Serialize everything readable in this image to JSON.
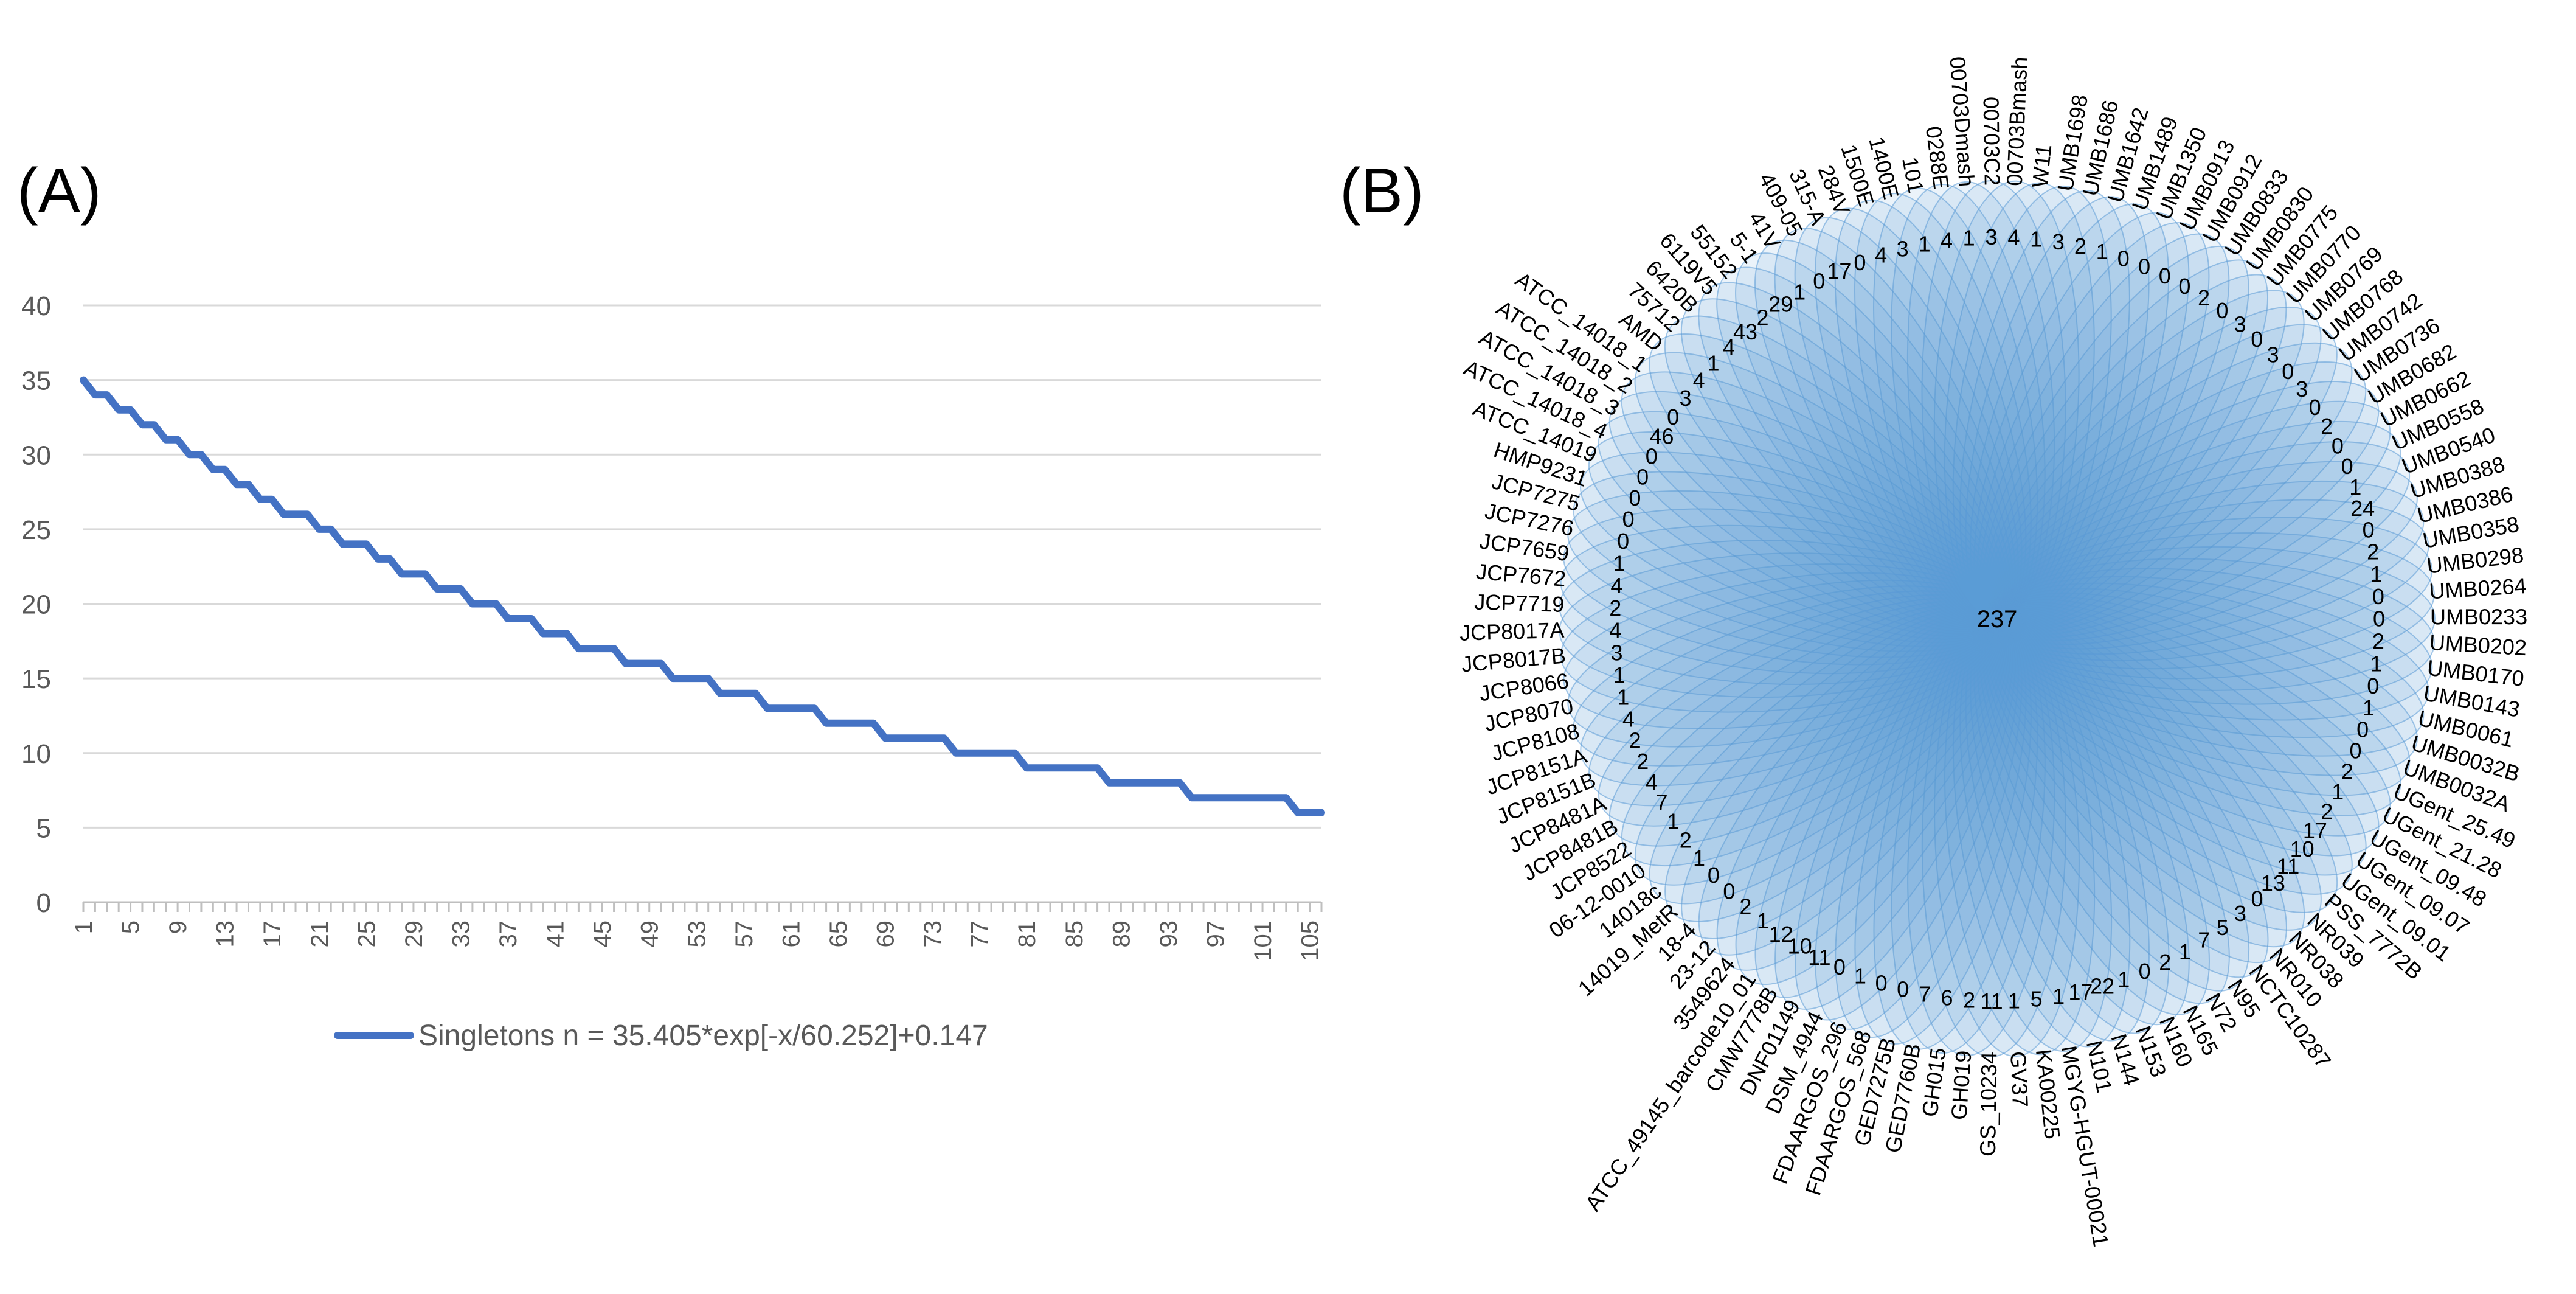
{
  "figure": {
    "panel_a_label": "(A)",
    "panel_b_label": "(B)"
  },
  "chart_data": [
    {
      "type": "line",
      "panel": "A",
      "legend": "Singletons n = 35.405*exp[-x/60.252]+0.147",
      "line_color": "#4472C4",
      "grid": true,
      "ylim": [
        0,
        40
      ],
      "yticks": [
        0,
        5,
        10,
        15,
        20,
        25,
        30,
        35,
        40
      ],
      "xlim": [
        1,
        106
      ],
      "xtick_labels": [
        "1",
        "5",
        "9",
        "13",
        "17",
        "21",
        "25",
        "29",
        "33",
        "37",
        "41",
        "45",
        "49",
        "53",
        "57",
        "61",
        "65",
        "69",
        "73",
        "77",
        "81",
        "85",
        "89",
        "93",
        "97",
        "101",
        "105"
      ],
      "x": [
        1,
        2,
        3,
        4,
        5,
        6,
        7,
        8,
        9,
        10,
        11,
        12,
        13,
        14,
        15,
        16,
        17,
        18,
        19,
        20,
        21,
        22,
        23,
        24,
        25,
        26,
        27,
        28,
        29,
        30,
        31,
        32,
        33,
        34,
        35,
        36,
        37,
        38,
        39,
        40,
        41,
        42,
        43,
        44,
        45,
        46,
        47,
        48,
        49,
        50,
        51,
        52,
        53,
        54,
        55,
        56,
        57,
        58,
        59,
        60,
        61,
        62,
        63,
        64,
        65,
        66,
        67,
        68,
        69,
        70,
        71,
        72,
        73,
        74,
        75,
        76,
        77,
        78,
        79,
        80,
        81,
        82,
        83,
        84,
        85,
        86,
        87,
        88,
        89,
        90,
        91,
        92,
        93,
        94,
        95,
        96,
        97,
        98,
        99,
        100,
        101,
        102,
        103,
        104,
        105,
        106
      ],
      "values": [
        35,
        34,
        34,
        33,
        33,
        32,
        32,
        31,
        31,
        30,
        30,
        29,
        29,
        28,
        28,
        27,
        27,
        26,
        26,
        26,
        25,
        25,
        24,
        24,
        24,
        23,
        23,
        22,
        22,
        22,
        21,
        21,
        21,
        20,
        20,
        20,
        19,
        19,
        19,
        18,
        18,
        18,
        17,
        17,
        17,
        17,
        16,
        16,
        16,
        16,
        15,
        15,
        15,
        15,
        14,
        14,
        14,
        14,
        13,
        13,
        13,
        13,
        13,
        12,
        12,
        12,
        12,
        12,
        11,
        11,
        11,
        11,
        11,
        11,
        10,
        10,
        10,
        10,
        10,
        10,
        9,
        9,
        9,
        9,
        9,
        9,
        9,
        8,
        8,
        8,
        8,
        8,
        8,
        8,
        7,
        7,
        7,
        7,
        7,
        7,
        7,
        7,
        7,
        6,
        6,
        6
      ]
    },
    {
      "type": "flower",
      "panel": "B",
      "center_value": "237",
      "petal_color": "#5B9BD5",
      "petals": [
        {
          "name": "00703Bmash",
          "value": "4"
        },
        {
          "name": "W11",
          "value": "1"
        },
        {
          "name": "UMB1698",
          "value": "3"
        },
        {
          "name": "UMB1686",
          "value": "2"
        },
        {
          "name": "UMB1642",
          "value": "1"
        },
        {
          "name": "UMB1489",
          "value": "0"
        },
        {
          "name": "UMB1350",
          "value": "0"
        },
        {
          "name": "UMB0913",
          "value": "0"
        },
        {
          "name": "UMB0912",
          "value": "0"
        },
        {
          "name": "UMB0833",
          "value": "2"
        },
        {
          "name": "UMB0830",
          "value": "0"
        },
        {
          "name": "UMB0775",
          "value": "3"
        },
        {
          "name": "UMB0770",
          "value": "0"
        },
        {
          "name": "UMB0769",
          "value": "3"
        },
        {
          "name": "UMB0768",
          "value": "0"
        },
        {
          "name": "UMB0742",
          "value": "3"
        },
        {
          "name": "UMB0736",
          "value": "0"
        },
        {
          "name": "UMB0682",
          "value": "2"
        },
        {
          "name": "UMB0662",
          "value": "0"
        },
        {
          "name": "UMB0558",
          "value": "0"
        },
        {
          "name": "UMB0540",
          "value": "1"
        },
        {
          "name": "UMB0388",
          "value": "24"
        },
        {
          "name": "UMB0386",
          "value": "0"
        },
        {
          "name": "UMB0358",
          "value": "2"
        },
        {
          "name": "UMB0298",
          "value": "1"
        },
        {
          "name": "UMB0264",
          "value": "0"
        },
        {
          "name": "UMB0233",
          "value": "0"
        },
        {
          "name": "UMB0202",
          "value": "2"
        },
        {
          "name": "UMB0170",
          "value": "1"
        },
        {
          "name": "UMB0143",
          "value": "0"
        },
        {
          "name": "UMB0061",
          "value": "1"
        },
        {
          "name": "UMB0032B",
          "value": "0"
        },
        {
          "name": "UMB0032A",
          "value": "0"
        },
        {
          "name": "UGent_25.49",
          "value": "2"
        },
        {
          "name": "UGent_21.28",
          "value": "1"
        },
        {
          "name": "UGent_09.48",
          "value": "2"
        },
        {
          "name": "UGent_09.07",
          "value": "17"
        },
        {
          "name": "UGent_09.01",
          "value": "10"
        },
        {
          "name": "PSS_7772B",
          "value": "11"
        },
        {
          "name": "NR039",
          "value": "13"
        },
        {
          "name": "NR038",
          "value": "0"
        },
        {
          "name": "NR010",
          "value": "3"
        },
        {
          "name": "NCTC10287",
          "value": "5"
        },
        {
          "name": "N95",
          "value": "7"
        },
        {
          "name": "N72",
          "value": "1"
        },
        {
          "name": "N165",
          "value": "2"
        },
        {
          "name": "N160",
          "value": "0"
        },
        {
          "name": "N153",
          "value": "1"
        },
        {
          "name": "N144",
          "value": "22"
        },
        {
          "name": "N101",
          "value": "17"
        },
        {
          "name": "MGYG-HGUT-00021",
          "value": "1"
        },
        {
          "name": "KA00225",
          "value": "5"
        },
        {
          "name": "GV37",
          "value": "1"
        },
        {
          "name": "GS_10234",
          "value": "11"
        },
        {
          "name": "GH019",
          "value": "2"
        },
        {
          "name": "GH015",
          "value": "6"
        },
        {
          "name": "GED7760B",
          "value": "7"
        },
        {
          "name": "GED7275B",
          "value": "0"
        },
        {
          "name": "FDAARGOS_568",
          "value": "0"
        },
        {
          "name": "FDAARGOS_296",
          "value": "1"
        },
        {
          "name": "DSM_4944",
          "value": "0"
        },
        {
          "name": "DNF01149",
          "value": "11"
        },
        {
          "name": "CMW7778B",
          "value": "10"
        },
        {
          "name": "ATCC_49145_barcode10_01",
          "value": "12"
        },
        {
          "name": "3549624",
          "value": "1"
        },
        {
          "name": "23-12",
          "value": "2"
        },
        {
          "name": "18-4",
          "value": "0"
        },
        {
          "name": "14019_MetR",
          "value": "0"
        },
        {
          "name": "14018c",
          "value": "1"
        },
        {
          "name": "06-12-0010",
          "value": "2"
        },
        {
          "name": "JCP8522",
          "value": "1"
        },
        {
          "name": "JCP8481B",
          "value": "7"
        },
        {
          "name": "JCP8481A",
          "value": "4"
        },
        {
          "name": "JCP8151B",
          "value": "2"
        },
        {
          "name": "JCP8151A",
          "value": "2"
        },
        {
          "name": "JCP8108",
          "value": "4"
        },
        {
          "name": "JCP8070",
          "value": "1"
        },
        {
          "name": "JCP8066",
          "value": "1"
        },
        {
          "name": "JCP8017B",
          "value": "3"
        },
        {
          "name": "JCP8017A",
          "value": "4"
        },
        {
          "name": "JCP7719",
          "value": "2"
        },
        {
          "name": "JCP7672",
          "value": "4"
        },
        {
          "name": "JCP7659",
          "value": "1"
        },
        {
          "name": "JCP7276",
          "value": "0"
        },
        {
          "name": "JCP7275",
          "value": "0"
        },
        {
          "name": "HMP9231",
          "value": "0"
        },
        {
          "name": "ATCC_14019",
          "value": "0"
        },
        {
          "name": "ATCC_14018_4",
          "value": "0"
        },
        {
          "name": "ATCC_14018_3",
          "value": "46"
        },
        {
          "name": "ATCC_14018_2",
          "value": "0"
        },
        {
          "name": "ATCC_14018_1",
          "value": "3"
        },
        {
          "name": "AMD",
          "value": "4"
        },
        {
          "name": "75712",
          "value": "1"
        },
        {
          "name": "6420B",
          "value": "4"
        },
        {
          "name": "6119V5",
          "value": "43"
        },
        {
          "name": "55152",
          "value": "2"
        },
        {
          "name": "5-1",
          "value": "29"
        },
        {
          "name": "41V",
          "value": "1"
        },
        {
          "name": "409-05",
          "value": "0"
        },
        {
          "name": "315-A",
          "value": "17"
        },
        {
          "name": "284V",
          "value": "0"
        },
        {
          "name": "1500E",
          "value": "4"
        },
        {
          "name": "1400E",
          "value": "3"
        },
        {
          "name": "101",
          "value": "1"
        },
        {
          "name": "0288E",
          "value": "4"
        },
        {
          "name": "00703Dmash",
          "value": "1"
        },
        {
          "name": "00703C2",
          "value": "3"
        }
      ]
    }
  ]
}
